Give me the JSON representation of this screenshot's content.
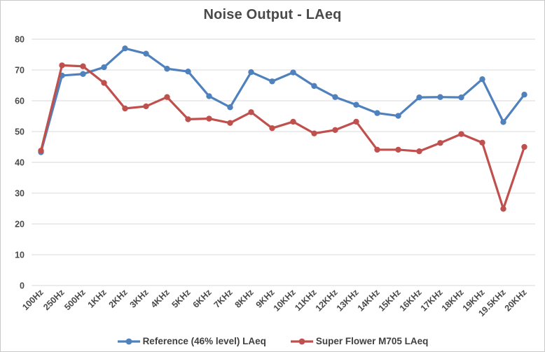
{
  "chart_data": {
    "type": "line",
    "title": "Noise Output - LAeq",
    "xlabel": "",
    "ylabel": "",
    "ylim": [
      0,
      80
    ],
    "ytick_step": 10,
    "grid": true,
    "legend_position": "bottom",
    "categories": [
      "100Hz",
      "250Hz",
      "500Hz",
      "1KHz",
      "2KHz",
      "3KHz",
      "4KHz",
      "5KHz",
      "6KHz",
      "7KHz",
      "8KHz",
      "9KHz",
      "10KHz",
      "11KHz",
      "12KHz",
      "13KHz",
      "14KHz",
      "15KHz",
      "16KHz",
      "17KHz",
      "18KHz",
      "19KHz",
      "19.5KHz",
      "20KHz"
    ],
    "series": [
      {
        "name": "Reference (46% level) LAeq",
        "color": "#4F81BD",
        "values": [
          43.3,
          68.2,
          68.7,
          70.9,
          77.0,
          75.3,
          70.4,
          69.5,
          61.5,
          57.9,
          69.3,
          66.3,
          69.2,
          64.8,
          61.2,
          58.7,
          56.0,
          55.1,
          61.1,
          61.2,
          61.1,
          67.0,
          53.1,
          62.0
        ]
      },
      {
        "name": "Super Flower M705 LAeq",
        "color": "#C0504D",
        "values": [
          43.8,
          71.5,
          71.2,
          65.8,
          57.5,
          58.2,
          61.2,
          54.0,
          54.2,
          52.8,
          56.3,
          51.1,
          53.2,
          49.4,
          50.5,
          53.2,
          44.1,
          44.1,
          43.6,
          46.3,
          49.2,
          46.4,
          24.9,
          45.0
        ]
      }
    ],
    "colors": {
      "gridline": "#D9D9D9",
      "tick_text": "#4a4a4a",
      "title_text": "#4a4a4a",
      "legend_text": "#404040",
      "background": "#ffffff",
      "frame_border": "#c9c9c9"
    }
  }
}
